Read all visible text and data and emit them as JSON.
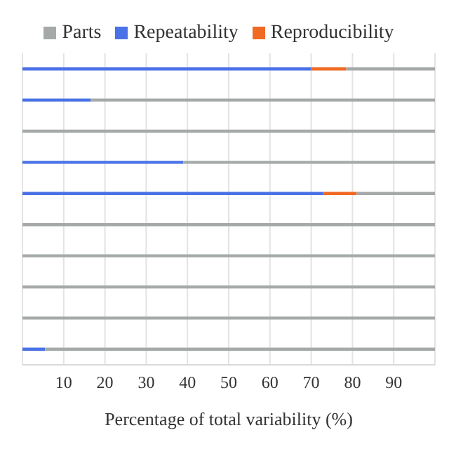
{
  "chart_data": {
    "type": "bar",
    "orientation": "horizontal",
    "stacked": true,
    "xlabel": "Percentage of total variability (%)",
    "categories": [
      null,
      null,
      null,
      null,
      null,
      null,
      null,
      null,
      null,
      null
    ],
    "series": [
      {
        "name": "Repeatability",
        "color": "#4a72e6",
        "values": [
          70,
          16.5,
          0,
          39,
          73,
          0,
          0,
          0,
          0,
          5.5
        ]
      },
      {
        "name": "Reproducibility",
        "color": "#f06a24",
        "values": [
          8.5,
          0,
          0,
          0,
          8,
          0,
          0,
          0,
          0,
          0
        ]
      },
      {
        "name": "Parts",
        "color": "#a5aaa9",
        "values": [
          21.5,
          83.5,
          100,
          61,
          19,
          100,
          100,
          100,
          100,
          94.5
        ]
      }
    ],
    "xlim": [
      0,
      100
    ],
    "xticks": [
      10,
      20,
      30,
      40,
      50,
      60,
      70,
      80,
      90
    ],
    "grid": "x",
    "legend": "top"
  }
}
